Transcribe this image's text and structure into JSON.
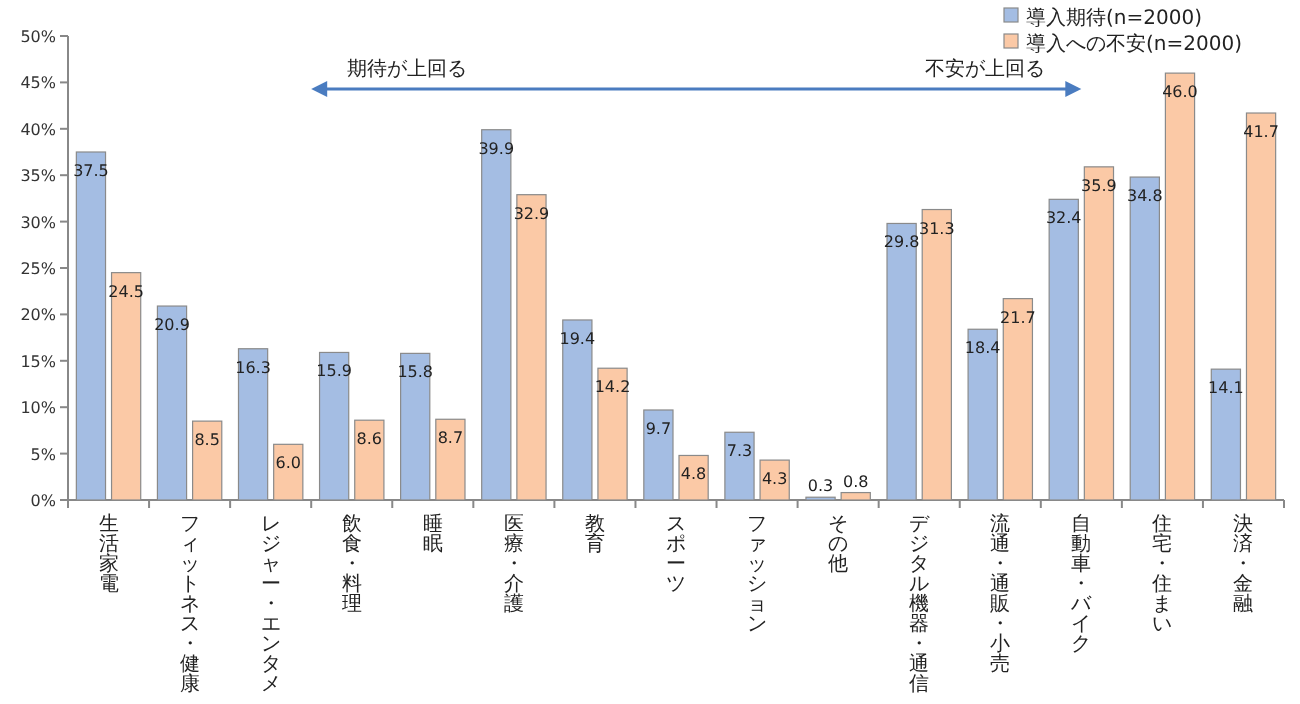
{
  "chart_data": {
    "type": "bar",
    "categories": [
      "生活家電",
      "フィットネス・健康",
      "レジャー・エンタメ",
      "飲食・料理",
      "睡眠",
      "医療・介護",
      "教育",
      "スポーツ",
      "ファッション",
      "その他",
      "デジタル機器・通信",
      "流通・通販・小売",
      "自動車・バイク",
      "住宅・住まい",
      "決済・金融"
    ],
    "series": [
      {
        "name": "導入期待(n=2000)",
        "color": "#a4bde3",
        "values": [
          37.5,
          20.9,
          16.3,
          15.9,
          15.8,
          39.9,
          19.4,
          9.7,
          7.3,
          0.3,
          29.8,
          18.4,
          32.4,
          34.8,
          14.1
        ],
        "value_labels": [
          "37.5",
          "20.9",
          "16.3",
          "15.9",
          "15.8",
          "39.9",
          "19.4",
          "9.7",
          "7.3",
          "0.3",
          "29.8",
          "18.4",
          "32.4",
          "34.8",
          "14.1"
        ]
      },
      {
        "name": "導入への不安(n=2000)",
        "color": "#fbc9a6",
        "values": [
          24.5,
          8.5,
          6.0,
          8.6,
          8.7,
          32.9,
          14.2,
          4.8,
          4.3,
          0.8,
          31.3,
          21.7,
          35.9,
          46.0,
          41.7
        ],
        "value_labels": [
          "24.5",
          "8.5",
          "6.0",
          "8.6",
          "8.7",
          "32.9",
          "14.2",
          "4.8",
          "4.3",
          "0.8",
          "31.3",
          "21.7",
          "35.9",
          "46.0",
          "41.7"
        ]
      }
    ],
    "ylim": [
      0,
      50
    ],
    "yticks": [
      {
        "value": 0,
        "label": "0%"
      },
      {
        "value": 5,
        "label": "5%"
      },
      {
        "value": 10,
        "label": "10%"
      },
      {
        "value": 15,
        "label": "15%"
      },
      {
        "value": 20,
        "label": "20%"
      },
      {
        "value": 25,
        "label": "25%"
      },
      {
        "value": 30,
        "label": "30%"
      },
      {
        "value": 35,
        "label": "35%"
      },
      {
        "value": 40,
        "label": "40%"
      },
      {
        "value": 45,
        "label": "45%"
      },
      {
        "value": 50,
        "label": "50%"
      }
    ],
    "grid": false,
    "legend": "top right",
    "annotations": [
      "期待が上回る",
      "不安が上回る"
    ]
  }
}
